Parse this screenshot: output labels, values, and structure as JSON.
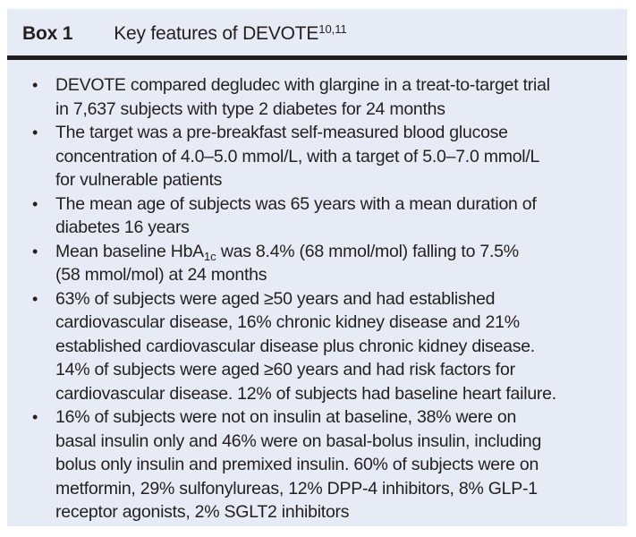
{
  "header": {
    "box_label": "Box 1",
    "title": "Key features of DEVOTE",
    "title_superscript": "10,11"
  },
  "bullet_glyph": "•",
  "bullets": {
    "b1": "DEVOTE compared degludec with glargine in a treat-to-target trial\nin 7,637 subjects with type 2 diabetes for 24 months",
    "b2": "The target was a pre-breakfast self-measured blood glucose\nconcentration of 4.0–5.0 mmol/L, with a target of 5.0–7.0 mmol/L\nfor vulnerable patients",
    "b3": "The mean age of subjects was 65 years with a mean duration of\ndiabetes 16 years",
    "b4_pre": "Mean baseline HbA",
    "b4_sub": "1c",
    "b4_post": " was 8.4% (68 mmol/mol) falling to 7.5%\n(58 mmol/mol) at 24 months",
    "b5": "63% of subjects were aged ≥50 years and had established\ncardiovascular disease, 16% chronic kidney disease and 21%\nestablished cardiovascular disease plus chronic kidney disease.\n14% of subjects were aged ≥60 years and had risk factors for\ncardiovascular disease. 12% of subjects had baseline heart failure.",
    "b6": "16% of subjects were not on insulin at baseline, 38% were on\nbasal insulin only and 46% were on basal-bolus insulin, including\nbolus only insulin and premixed insulin. 60% of subjects were on\nmetformin, 29% sulfonylureas, 12% DPP-4 inhibitors, 8% GLP-1\nreceptor agonists, 2% SGLT2 inhibitors"
  },
  "colors": {
    "box_background": "#e7ebf5",
    "rule": "#1f1d22",
    "text": "#231f20",
    "page_background": "#ffffff"
  }
}
